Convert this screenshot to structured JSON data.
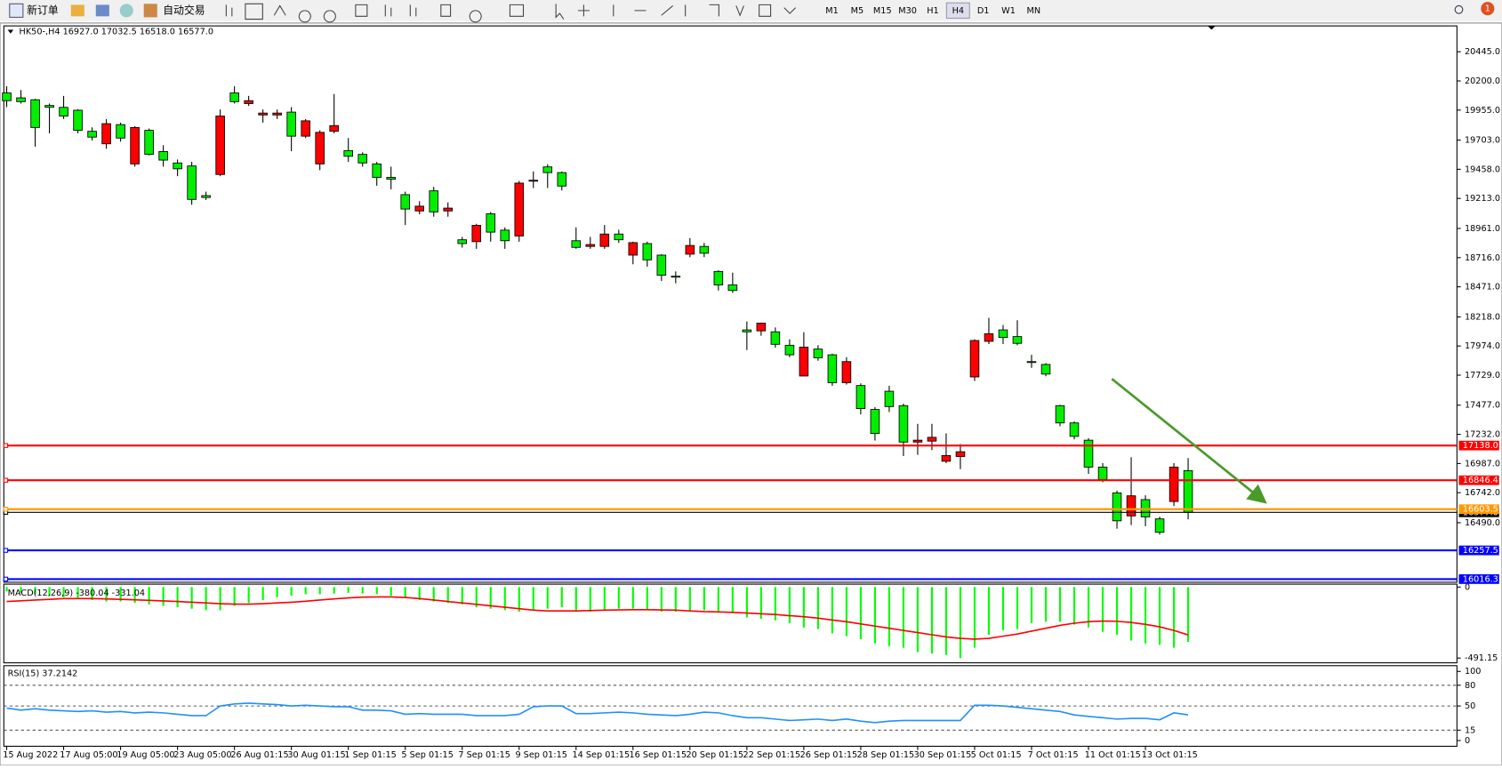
{
  "toolbar": {
    "new_order": "新订单",
    "auto_trading": "自动交易",
    "timeframes": [
      "M1",
      "M5",
      "M15",
      "M30",
      "H1",
      "H4",
      "D1",
      "W1",
      "MN"
    ],
    "active": 5,
    "notifications": "1"
  },
  "chart_data": [
    {
      "type": "candlestick",
      "title": "HK50-,H4  16927.0 17032.5 16518.0 16577.0",
      "categories": [
        "15 Aug 2022",
        null,
        null,
        null,
        "17 Aug 05:00",
        null,
        null,
        null,
        "19 Aug 05:00",
        null,
        null,
        null,
        "23 Aug 05:00",
        null,
        null,
        null,
        "26 Aug 01:15",
        null,
        null,
        null,
        "30 Aug 01:15",
        null,
        null,
        null,
        "1 Sep 01:15",
        null,
        null,
        null,
        "5 Sep 01:15",
        null,
        null,
        null,
        "7 Sep 01:15",
        null,
        null,
        null,
        "9 Sep 01:15",
        null,
        null,
        null,
        "14 Sep 01:15",
        null,
        null,
        null,
        "16 Sep 01:15",
        null,
        null,
        null,
        "20 Sep 01:15",
        null,
        null,
        null,
        "22 Sep 01:15",
        null,
        null,
        null,
        "26 Sep 01:15",
        null,
        null,
        null,
        "28 Sep 01:15",
        null,
        null,
        null,
        "30 Sep 01:15",
        null,
        null,
        null,
        "5 Oct 01:15",
        null,
        null,
        null,
        "7 Oct 01:15",
        null,
        null,
        null,
        "11 Oct 01:15",
        null,
        null,
        null,
        "13 Oct 01:15",
        null,
        null,
        null
      ],
      "open": [
        20099,
        20058,
        20042,
        19994,
        19978,
        19954,
        19777,
        19672,
        19833,
        19503,
        19785,
        19607,
        19511,
        19486,
        19237,
        19414,
        20099,
        20010,
        19914,
        19914,
        19938,
        19736,
        19503,
        19777,
        19615,
        19583,
        19503,
        19390,
        19245,
        19108,
        19277,
        19108,
        18866,
        18850,
        19084,
        18947,
        18898,
        19358,
        19478,
        19430,
        18858,
        18810,
        18810,
        18914,
        18737,
        18834,
        18737,
        18560,
        18745,
        18810,
        18600,
        18487,
        18109,
        18101,
        18093,
        17980,
        17722,
        17948,
        17900,
        17666,
        17642,
        17441,
        17594,
        17473,
        17167,
        17175,
        17006,
        17046,
        17714,
        18013,
        18109,
        18053,
        17843,
        17819,
        17473,
        17328,
        17183,
        16957,
        16740,
        16547,
        16684,
        16522,
        16668,
        16927
      ],
      "high": [
        20155,
        20123,
        20050,
        20010,
        20074,
        19962,
        19810,
        19880,
        19850,
        19820,
        19800,
        19660,
        19540,
        19520,
        19270,
        19960,
        20155,
        20074,
        19960,
        19960,
        19980,
        19880,
        19785,
        20090,
        19720,
        19600,
        19520,
        19480,
        19270,
        19190,
        19310,
        19180,
        18890,
        19000,
        19100,
        18970,
        19360,
        19440,
        19500,
        19440,
        18970,
        18890,
        18990,
        18950,
        18850,
        18850,
        18745,
        18600,
        18880,
        18840,
        18610,
        18590,
        18180,
        18170,
        18130,
        18030,
        18090,
        17980,
        17910,
        17880,
        17660,
        17460,
        17640,
        17490,
        17320,
        17320,
        17240,
        17150,
        18030,
        18210,
        18150,
        18190,
        17900,
        17830,
        17480,
        17340,
        17200,
        16990,
        16760,
        17040,
        16720,
        16540,
        16990,
        17032.5
      ],
      "low": [
        19980,
        20010,
        19648,
        19760,
        19880,
        19760,
        19700,
        19630,
        19690,
        19480,
        19575,
        19480,
        19400,
        19160,
        19200,
        19400,
        20010,
        19990,
        19850,
        19880,
        19610,
        19720,
        19450,
        19760,
        19520,
        19480,
        19320,
        19290,
        18990,
        19080,
        19060,
        19060,
        18800,
        18790,
        18850,
        18790,
        18850,
        19300,
        19300,
        19280,
        18790,
        18790,
        18790,
        18840,
        18660,
        18640,
        18520,
        18500,
        18720,
        18720,
        18440,
        18420,
        17940,
        18060,
        17960,
        17880,
        17722,
        17850,
        17640,
        17650,
        17400,
        17180,
        17420,
        17050,
        17060,
        17100,
        16990,
        16940,
        17680,
        17990,
        17990,
        17980,
        17790,
        17720,
        17300,
        17190,
        16900,
        16830,
        16440,
        16470,
        16460,
        16390,
        16630,
        16518
      ],
      "close": [
        20034,
        20026,
        19809,
        19978,
        19905,
        19785,
        19728,
        19841,
        19720,
        19809,
        19583,
        19535,
        19462,
        19205,
        19221,
        19905,
        20026,
        20034,
        19930,
        19930,
        19736,
        19865,
        19768,
        19825,
        19567,
        19511,
        19390,
        19374,
        19124,
        19148,
        19100,
        19132,
        18834,
        18987,
        18930,
        18858,
        19342,
        19366,
        19430,
        19317,
        18802,
        18826,
        18914,
        18866,
        18842,
        18697,
        18568,
        18552,
        18818,
        18753,
        18487,
        18440,
        18093,
        18166,
        17988,
        17900,
        17964,
        17875,
        17666,
        17843,
        17448,
        17239,
        17465,
        17167,
        17183,
        17207,
        17054,
        17086,
        18020,
        18077,
        18045,
        17996,
        17835,
        17738,
        17328,
        17215,
        16957,
        16853,
        16506,
        16716,
        16539,
        16409,
        16957,
        16577
      ],
      "up_color": "#ff0000",
      "down_color": "#00ee00",
      "ylim": [
        15990,
        20662
      ],
      "yticks": [
        {
          "value": 20445,
          "label": "20445.0"
        },
        {
          "value": 20200,
          "label": "20200.0"
        },
        {
          "value": 19955,
          "label": "19955.0"
        },
        {
          "value": 19703,
          "label": "19703.0"
        },
        {
          "value": 19458,
          "label": "19458.0"
        },
        {
          "value": 19213,
          "label": "19213.0"
        },
        {
          "value": 18961,
          "label": "18961.0"
        },
        {
          "value": 18716,
          "label": "18716.0"
        },
        {
          "value": 18471,
          "label": "18471.0"
        },
        {
          "value": 18218,
          "label": "18218.0"
        },
        {
          "value": 17974,
          "label": "17974.0"
        },
        {
          "value": 17729,
          "label": "17729.0"
        },
        {
          "value": 17477,
          "label": "17477.0"
        },
        {
          "value": 17232,
          "label": "17232.0"
        },
        {
          "value": 16987,
          "label": "16987.0"
        },
        {
          "value": 16742,
          "label": "16742.0"
        },
        {
          "value": 16490,
          "label": "16490.0"
        }
      ],
      "hlines": [
        {
          "value": 17138,
          "label": "17138.0",
          "color": "#ff0000"
        },
        {
          "value": 16846.4,
          "label": "16846.4",
          "color": "#ff0000"
        },
        {
          "value": 16603.5,
          "label": "16603.5",
          "color": "#ff9900"
        },
        {
          "value": 16257.5,
          "label": "16257.5",
          "color": "#0000ff"
        },
        {
          "value": 16016.3,
          "label": "16016.3",
          "color": "#0000ff"
        }
      ],
      "price_line": {
        "value": 16577,
        "label": "16577.0",
        "color": "#000000"
      }
    },
    {
      "type": "macd",
      "title": "MACD(12,26,9) -380.04 -331.04",
      "histogram": [
        -30,
        -40,
        -50,
        -60,
        -70,
        -80,
        -90,
        -100,
        -100,
        -110,
        -120,
        -130,
        -140,
        -150,
        -160,
        -160,
        -130,
        -110,
        -90,
        -70,
        -60,
        -50,
        -50,
        -45,
        -40,
        -45,
        -50,
        -60,
        -75,
        -90,
        -100,
        -110,
        -120,
        -140,
        -150,
        -160,
        -170,
        -160,
        -150,
        -140,
        -160,
        -170,
        -160,
        -150,
        -150,
        -160,
        -170,
        -170,
        -170,
        -160,
        -170,
        -180,
        -210,
        -220,
        -230,
        -250,
        -280,
        -290,
        -320,
        -340,
        -360,
        -390,
        -410,
        -420,
        -450,
        -460,
        -470,
        -491,
        -420,
        -330,
        -300,
        -290,
        -250,
        -240,
        -240,
        -260,
        -280,
        -310,
        -330,
        -370,
        -390,
        -400,
        -420,
        -380.04
      ],
      "signal": [
        -100,
        -95,
        -90,
        -85,
        -80,
        -80,
        -80,
        -82,
        -85,
        -88,
        -92,
        -96,
        -100,
        -105,
        -110,
        -115,
        -118,
        -118,
        -115,
        -110,
        -105,
        -98,
        -90,
        -82,
        -75,
        -70,
        -68,
        -68,
        -72,
        -80,
        -90,
        -100,
        -110,
        -120,
        -130,
        -140,
        -150,
        -160,
        -165,
        -165,
        -165,
        -163,
        -160,
        -158,
        -157,
        -157,
        -158,
        -160,
        -165,
        -170,
        -172,
        -175,
        -180,
        -185,
        -190,
        -198,
        -205,
        -215,
        -228,
        -240,
        -255,
        -270,
        -285,
        -300,
        -315,
        -330,
        -345,
        -355,
        -360,
        -355,
        -340,
        -325,
        -305,
        -285,
        -265,
        -250,
        -240,
        -235,
        -237,
        -245,
        -258,
        -275,
        -300,
        -331.04
      ],
      "histogram_color": "#00ff00",
      "signal_color": "#ff0000",
      "ylim": [
        -524,
        20
      ],
      "yticks": [
        0,
        -491.15
      ]
    },
    {
      "type": "line",
      "title": "RSI(15) 37.2142",
      "values": [
        47,
        44,
        46,
        44,
        43,
        42,
        43,
        41,
        42,
        40,
        41,
        40,
        38,
        36,
        36,
        50,
        53,
        54,
        53,
        52,
        50,
        51,
        50,
        49,
        49,
        44,
        44,
        43,
        38,
        39,
        38,
        38,
        38,
        36,
        36,
        36,
        38,
        49,
        50,
        50,
        39,
        39,
        40,
        41,
        40,
        38,
        37,
        36,
        38,
        41,
        40,
        36,
        33,
        33,
        31,
        29,
        30,
        31,
        29,
        31,
        28,
        26,
        28,
        29,
        29,
        29,
        29,
        29,
        51,
        51,
        50,
        48,
        46,
        44,
        42,
        37,
        35,
        33,
        31,
        32,
        32,
        30,
        40,
        37.2142
      ],
      "color": "#1e90ff",
      "ylim": [
        -8.3,
        108.3
      ],
      "yticks": [
        100,
        80,
        50,
        15,
        0
      ],
      "levels": [
        80,
        50,
        15
      ]
    }
  ]
}
